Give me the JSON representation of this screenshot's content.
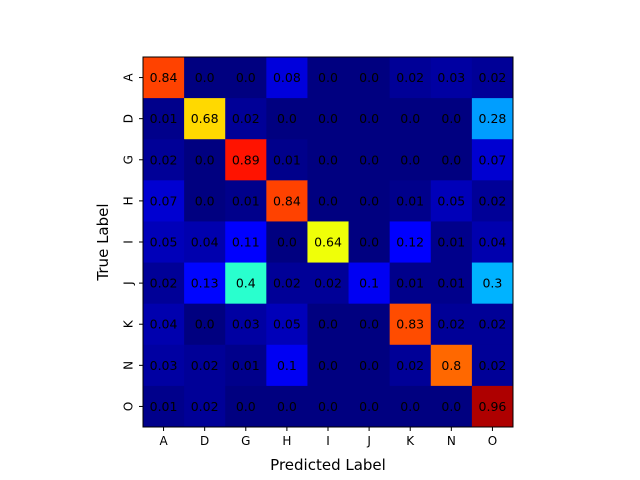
{
  "chart_data": {
    "type": "heatmap",
    "title": "",
    "xlabel": "Predicted Label",
    "ylabel": "True Label",
    "x_categories": [
      "A",
      "D",
      "G",
      "H",
      "I",
      "J",
      "K",
      "N",
      "O"
    ],
    "y_categories": [
      "A",
      "D",
      "G",
      "H",
      "I",
      "J",
      "K",
      "N",
      "O"
    ],
    "values": [
      [
        "0.84",
        "0.0",
        "0.0",
        "0.08",
        "0.0",
        "0.0",
        "0.02",
        "0.03",
        "0.02"
      ],
      [
        "0.01",
        "0.68",
        "0.02",
        "0.0",
        "0.0",
        "0.0",
        "0.0",
        "0.0",
        "0.28"
      ],
      [
        "0.02",
        "0.0",
        "0.89",
        "0.01",
        "0.0",
        "0.0",
        "0.0",
        "0.0",
        "0.07"
      ],
      [
        "0.07",
        "0.0",
        "0.01",
        "0.84",
        "0.0",
        "0.0",
        "0.01",
        "0.05",
        "0.02"
      ],
      [
        "0.05",
        "0.04",
        "0.11",
        "0.0",
        "0.64",
        "0.0",
        "0.12",
        "0.01",
        "0.04"
      ],
      [
        "0.02",
        "0.13",
        "0.4",
        "0.02",
        "0.02",
        "0.1",
        "0.01",
        "0.01",
        "0.3"
      ],
      [
        "0.04",
        "0.0",
        "0.03",
        "0.05",
        "0.0",
        "0.0",
        "0.83",
        "0.02",
        "0.02"
      ],
      [
        "0.03",
        "0.02",
        "0.01",
        "0.1",
        "0.0",
        "0.0",
        "0.02",
        "0.8",
        "0.02"
      ],
      [
        "0.01",
        "0.02",
        "0.0",
        "0.0",
        "0.0",
        "0.0",
        "0.0",
        "0.0",
        "0.96"
      ]
    ],
    "value_range": [
      0,
      1
    ],
    "colormap": "jet",
    "grid": false,
    "legend": "none"
  }
}
